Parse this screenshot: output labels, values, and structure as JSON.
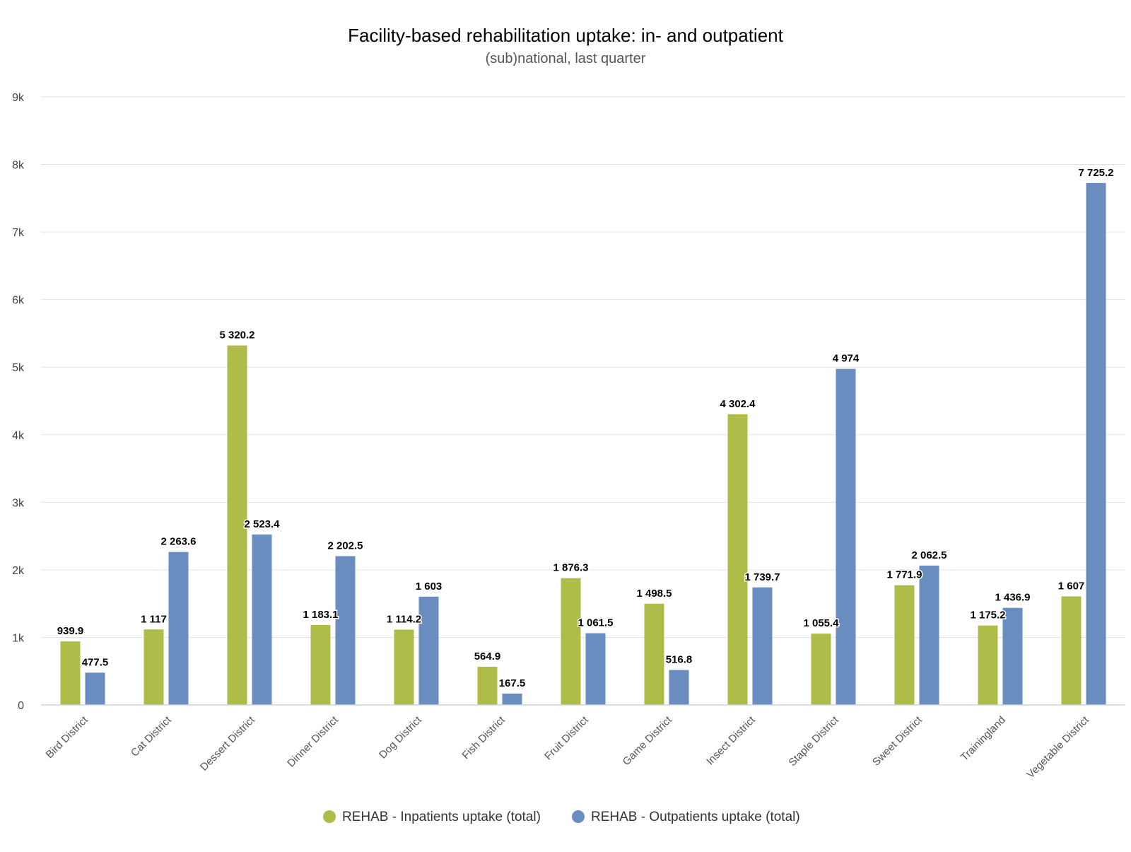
{
  "chart_data": {
    "type": "bar",
    "title": "Facility-based rehabilitation uptake: in- and outpatient",
    "subtitle": "(sub)national, last quarter",
    "categories": [
      "Bird District",
      "Cat District",
      "Dessert District",
      "Dinner District",
      "Dog District",
      "Fish District",
      "Fruit District",
      "Game District",
      "Insect District",
      "Staple District",
      "Sweet District",
      "Trainingland",
      "Vegetable District"
    ],
    "series": [
      {
        "name": "REHAB - Inpatients uptake (total)",
        "color": "#b0bc4a",
        "values": [
          939.9,
          1117,
          5320.2,
          1183.1,
          1114.2,
          564.9,
          1876.3,
          1498.5,
          4302.4,
          1055.4,
          1771.9,
          1175.2,
          1607
        ],
        "labels": [
          "939.9",
          "1 117",
          "5 320.2",
          "1 183.1",
          "1 114.2",
          "564.9",
          "1 876.3",
          "1 498.5",
          "4 302.4",
          "1 055.4",
          "1 771.9",
          "1 175.2",
          "1 607"
        ]
      },
      {
        "name": "REHAB - Outpatients uptake (total)",
        "color": "#6a8dbf",
        "values": [
          477.5,
          2263.6,
          2523.4,
          2202.5,
          1603,
          167.5,
          1061.5,
          516.8,
          1739.7,
          4974,
          2062.5,
          1436.9,
          7725.2
        ],
        "labels": [
          "477.5",
          "2 263.6",
          "2 523.4",
          "2 202.5",
          "1 603",
          "167.5",
          "1 061.5",
          "516.8",
          "1 739.7",
          "4 974",
          "2 062.5",
          "1 436.9",
          "7 725.2"
        ]
      }
    ],
    "yticks": [
      0,
      1000,
      2000,
      3000,
      4000,
      5000,
      6000,
      7000,
      8000,
      9000
    ],
    "ytick_labels": [
      "0",
      "1k",
      "2k",
      "3k",
      "4k",
      "5k",
      "6k",
      "7k",
      "8k",
      "9k"
    ],
    "ylim": [
      0,
      9000
    ],
    "xlabel": "",
    "ylabel": "",
    "grid": true,
    "legend_position": "bottom-center"
  }
}
